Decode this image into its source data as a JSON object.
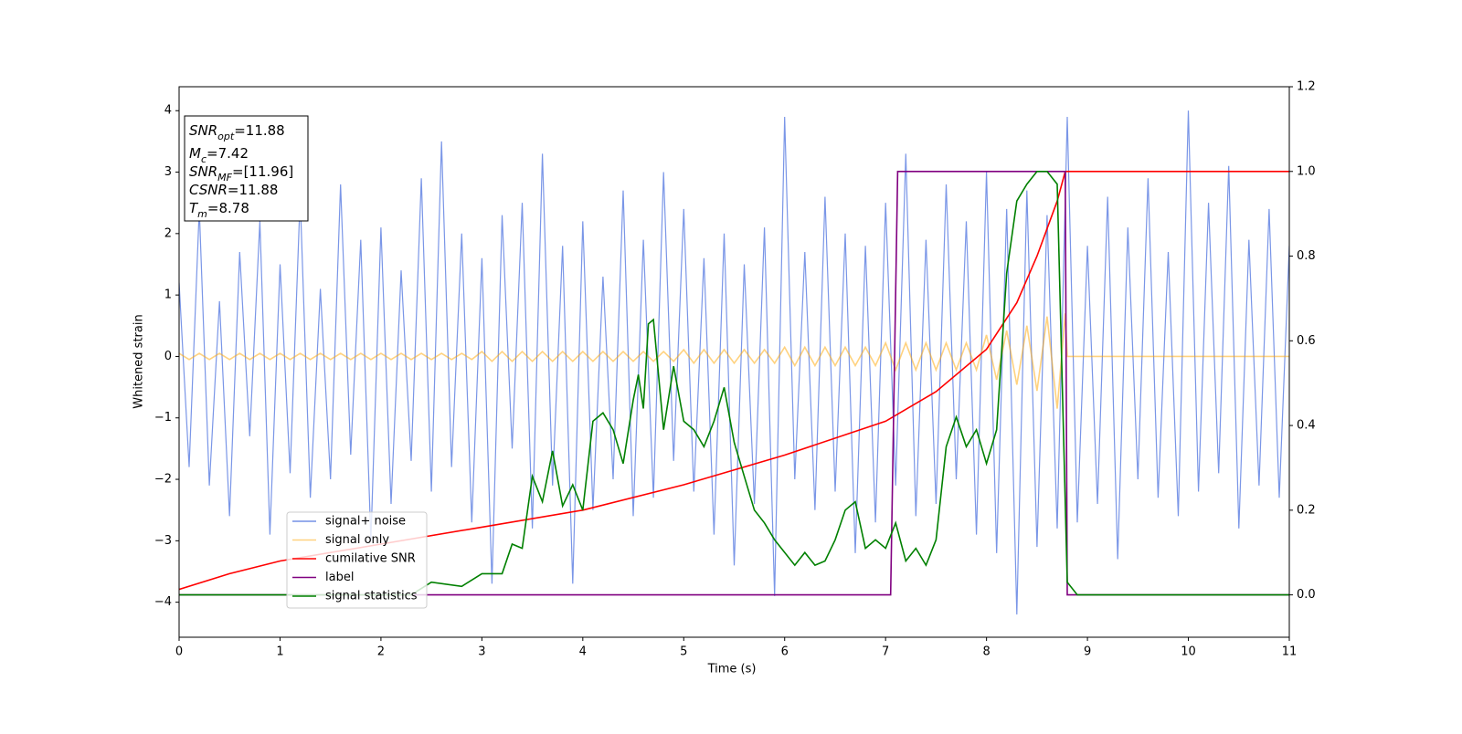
{
  "chart_data": {
    "type": "line",
    "xlabel": "Time (s)",
    "ylabel": "Whitened strain",
    "xlim": [
      0,
      11
    ],
    "xticks": [
      0,
      1,
      2,
      3,
      4,
      5,
      6,
      7,
      8,
      9,
      10,
      11
    ],
    "ylim": [
      -4.57,
      4.39
    ],
    "yticks": [
      {
        "value": -4,
        "label": "−4"
      },
      {
        "value": -3,
        "label": "−3"
      },
      {
        "value": -2,
        "label": "−2"
      },
      {
        "value": -1,
        "label": "−1"
      },
      0,
      1,
      2,
      3,
      4
    ],
    "y2lim": [
      -0.1,
      1.2
    ],
    "y2ticks": [
      {
        "value": 0,
        "label": "0.0"
      },
      {
        "value": 0.2,
        "label": "0.2"
      },
      {
        "value": 0.4,
        "label": "0.4"
      },
      {
        "value": 0.6,
        "label": "0.6"
      },
      {
        "value": 0.8,
        "label": "0.8"
      },
      {
        "value": 1,
        "label": "1.0"
      },
      {
        "value": 1.2,
        "label": "1.2"
      }
    ],
    "legend": "lower left",
    "annotations": [
      {
        "text": "SNR",
        "sub": "opt",
        "rest": "=11.88"
      },
      {
        "text": "M",
        "sub": "c",
        "rest": "=7.42"
      },
      {
        "text": "SNR",
        "sub": "MF",
        "rest": "=[11.96]"
      },
      {
        "text": "CSNR",
        "rest": "=11.88"
      },
      {
        "text": "T",
        "sub": "m",
        "rest": "=8.78"
      }
    ],
    "series": [
      {
        "name": "signal+ noise",
        "color": "#7390e6",
        "axis": "y",
        "x": [
          0,
          0.1,
          0.2,
          0.3,
          0.4,
          0.5,
          0.6,
          0.7,
          0.8,
          0.9,
          1,
          1.1,
          1.2,
          1.3,
          1.4,
          1.5,
          1.6,
          1.7,
          1.8,
          1.9,
          2,
          2.1,
          2.2,
          2.3,
          2.4,
          2.5,
          2.6,
          2.7,
          2.8,
          2.9,
          3,
          3.1,
          3.2,
          3.3,
          3.4,
          3.5,
          3.6,
          3.7,
          3.8,
          3.9,
          4,
          4.1,
          4.2,
          4.3,
          4.4,
          4.5,
          4.6,
          4.7,
          4.8,
          4.9,
          5,
          5.1,
          5.2,
          5.3,
          5.4,
          5.5,
          5.6,
          5.7,
          5.8,
          5.9,
          6,
          6.1,
          6.2,
          6.3,
          6.4,
          6.5,
          6.6,
          6.7,
          6.8,
          6.9,
          7,
          7.1,
          7.2,
          7.3,
          7.4,
          7.5,
          7.6,
          7.7,
          7.8,
          7.9,
          8,
          8.1,
          8.2,
          8.3,
          8.4,
          8.5,
          8.6,
          8.7,
          8.8,
          8.9,
          9,
          9.1,
          9.2,
          9.3,
          9.4,
          9.5,
          9.6,
          9.7,
          9.8,
          9.9,
          10,
          10.1,
          10.2,
          10.3,
          10.4,
          10.5,
          10.6,
          10.7,
          10.8,
          10.9,
          11
        ],
        "values": [
          1.2,
          -1.8,
          2.4,
          -2.1,
          0.9,
          -2.6,
          1.7,
          -1.3,
          2.2,
          -2.9,
          1.5,
          -1.9,
          2.6,
          -2.3,
          1.1,
          -2.0,
          2.8,
          -1.6,
          1.9,
          -3.0,
          2.1,
          -2.4,
          1.4,
          -1.7,
          2.9,
          -2.2,
          3.5,
          -1.8,
          2.0,
          -2.7,
          1.6,
          -3.7,
          2.3,
          -1.5,
          2.5,
          -2.8,
          3.3,
          -2.1,
          1.8,
          -3.7,
          2.2,
          -2.5,
          1.3,
          -2.0,
          2.7,
          -2.6,
          1.9,
          -2.3,
          3.0,
          -1.7,
          2.4,
          -2.2,
          1.6,
          -2.9,
          2.0,
          -3.4,
          1.5,
          -2.4,
          2.1,
          -3.9,
          3.9,
          -2.0,
          1.7,
          -2.5,
          2.6,
          -2.2,
          2.0,
          -3.2,
          1.8,
          -2.7,
          2.5,
          -2.1,
          3.3,
          -2.6,
          1.9,
          -2.4,
          2.8,
          -2.0,
          2.2,
          -2.9,
          3.0,
          -3.2,
          2.4,
          -4.2,
          2.7,
          -3.1,
          2.3,
          -2.8,
          3.9,
          -2.7,
          1.8,
          -2.4,
          2.6,
          -3.3,
          2.1,
          -2.0,
          2.9,
          -2.3,
          1.7,
          -2.6,
          4.0,
          -2.2,
          2.5,
          -1.9,
          3.1,
          -2.8,
          1.9,
          -2.1,
          2.4,
          -2.3,
          1.8
        ]
      },
      {
        "name": "signal only",
        "color": "#ffa500",
        "axis": "y",
        "x": [
          0,
          0.1,
          0.2,
          0.3,
          0.4,
          0.5,
          0.6,
          0.7,
          0.8,
          0.9,
          1,
          1.1,
          1.2,
          1.3,
          1.4,
          1.5,
          1.6,
          1.7,
          1.8,
          1.9,
          2,
          2.1,
          2.2,
          2.3,
          2.4,
          2.5,
          2.6,
          2.7,
          2.8,
          2.9,
          3,
          3.1,
          3.2,
          3.3,
          3.4,
          3.5,
          3.6,
          3.7,
          3.8,
          3.9,
          4,
          4.1,
          4.2,
          4.3,
          4.4,
          4.5,
          4.6,
          4.7,
          4.8,
          4.9,
          5,
          5.1,
          5.2,
          5.3,
          5.4,
          5.5,
          5.6,
          5.7,
          5.8,
          5.9,
          6,
          6.1,
          6.2,
          6.3,
          6.4,
          6.5,
          6.6,
          6.7,
          6.8,
          6.9,
          7,
          7.1,
          7.2,
          7.3,
          7.4,
          7.5,
          7.6,
          7.7,
          7.8,
          7.9,
          8,
          8.1,
          8.2,
          8.3,
          8.4,
          8.5,
          8.6,
          8.7,
          8.78,
          8.8,
          11
        ],
        "values": [
          0.05,
          -0.05,
          0.05,
          -0.05,
          0.05,
          -0.05,
          0.05,
          -0.05,
          0.05,
          -0.05,
          0.05,
          -0.05,
          0.05,
          -0.05,
          0.05,
          -0.05,
          0.05,
          -0.05,
          0.05,
          -0.05,
          0.05,
          -0.05,
          0.05,
          -0.05,
          0.05,
          -0.05,
          0.05,
          -0.05,
          0.05,
          -0.05,
          0.08,
          -0.08,
          0.08,
          -0.08,
          0.08,
          -0.08,
          0.08,
          -0.08,
          0.08,
          -0.08,
          0.08,
          -0.08,
          0.08,
          -0.08,
          0.08,
          -0.08,
          0.08,
          -0.08,
          0.08,
          -0.08,
          0.11,
          -0.11,
          0.11,
          -0.11,
          0.11,
          -0.11,
          0.11,
          -0.11,
          0.11,
          -0.11,
          0.15,
          -0.15,
          0.15,
          -0.15,
          0.15,
          -0.15,
          0.15,
          -0.15,
          0.15,
          -0.15,
          0.22,
          -0.22,
          0.22,
          -0.22,
          0.22,
          -0.22,
          0.22,
          -0.22,
          0.22,
          -0.22,
          0.35,
          -0.38,
          0.42,
          -0.46,
          0.5,
          -0.56,
          0.65,
          -0.85,
          0.7,
          0,
          0
        ]
      },
      {
        "name": "cumilative SNR",
        "color": "#ff0000",
        "axis": "y2",
        "x": [
          0,
          0.5,
          1,
          2,
          3,
          4,
          5,
          6,
          7,
          7.5,
          8,
          8.3,
          8.5,
          8.7,
          8.78,
          11
        ],
        "values": [
          0.013,
          0.05,
          0.08,
          0.12,
          0.16,
          0.2,
          0.26,
          0.33,
          0.41,
          0.48,
          0.58,
          0.69,
          0.8,
          0.93,
          1.0,
          1.0
        ]
      },
      {
        "name": "label",
        "color": "#800080",
        "axis": "y2",
        "x": [
          0,
          7.05,
          7.12,
          8.78,
          8.8,
          11
        ],
        "values": [
          0,
          0,
          1,
          1,
          0,
          0
        ]
      },
      {
        "name": "signal statistics",
        "color": "#008000",
        "axis": "y2",
        "x": [
          0,
          2.3,
          2.5,
          2.8,
          3.0,
          3.2,
          3.3,
          3.4,
          3.5,
          3.6,
          3.7,
          3.8,
          3.9,
          4.0,
          4.1,
          4.2,
          4.3,
          4.4,
          4.5,
          4.55,
          4.6,
          4.65,
          4.7,
          4.8,
          4.9,
          5.0,
          5.1,
          5.2,
          5.3,
          5.4,
          5.5,
          5.6,
          5.7,
          5.8,
          5.9,
          6.1,
          6.2,
          6.3,
          6.4,
          6.5,
          6.6,
          6.7,
          6.8,
          6.9,
          7.0,
          7.1,
          7.2,
          7.3,
          7.4,
          7.5,
          7.6,
          7.7,
          7.8,
          7.9,
          8.0,
          8.1,
          8.2,
          8.3,
          8.4,
          8.5,
          8.6,
          8.7,
          8.8,
          8.9,
          11
        ],
        "values": [
          0,
          0,
          0.03,
          0.02,
          0.05,
          0.05,
          0.12,
          0.11,
          0.28,
          0.22,
          0.34,
          0.21,
          0.26,
          0.2,
          0.41,
          0.43,
          0.39,
          0.31,
          0.46,
          0.52,
          0.44,
          0.64,
          0.65,
          0.39,
          0.54,
          0.41,
          0.39,
          0.35,
          0.41,
          0.49,
          0.36,
          0.28,
          0.2,
          0.17,
          0.13,
          0.07,
          0.1,
          0.07,
          0.08,
          0.13,
          0.2,
          0.22,
          0.11,
          0.13,
          0.11,
          0.17,
          0.08,
          0.11,
          0.07,
          0.13,
          0.35,
          0.42,
          0.35,
          0.39,
          0.31,
          0.39,
          0.76,
          0.93,
          0.97,
          1.0,
          1.0,
          0.97,
          0.03,
          0,
          0
        ]
      }
    ]
  }
}
